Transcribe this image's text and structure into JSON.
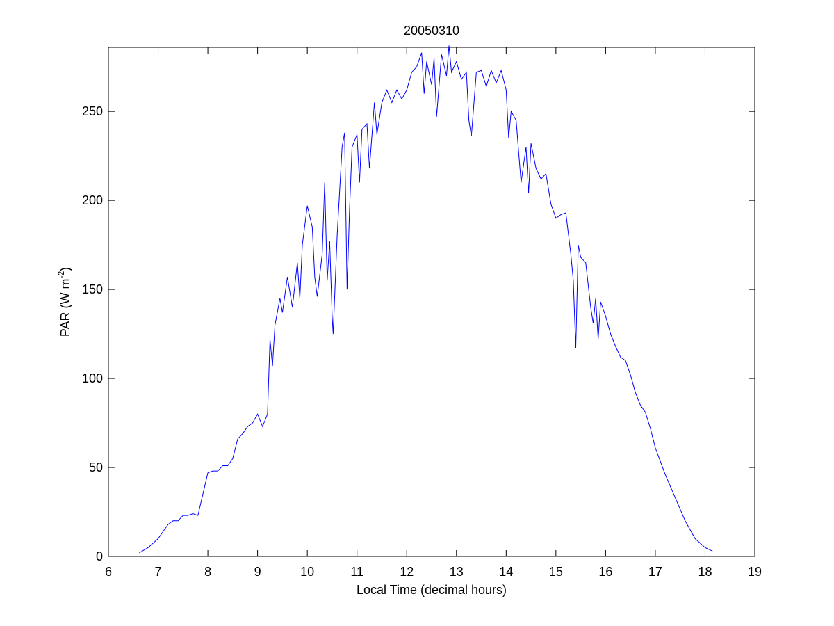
{
  "chart_data": {
    "type": "line",
    "title": "20050310",
    "x_label": "Local Time (decimal hours)",
    "y_label_parts": [
      "PAR (W m",
      "-2",
      ")"
    ],
    "color": "#0000ff",
    "x": [
      6.62,
      6.8,
      7.0,
      7.2,
      7.3,
      7.4,
      7.5,
      7.6,
      7.7,
      7.8,
      7.9,
      8.0,
      8.1,
      8.2,
      8.3,
      8.4,
      8.5,
      8.6,
      8.7,
      8.8,
      8.9,
      9.0,
      9.1,
      9.2,
      9.25,
      9.3,
      9.35,
      9.45,
      9.5,
      9.6,
      9.7,
      9.8,
      9.85,
      9.9,
      10.0,
      10.1,
      10.15,
      10.2,
      10.3,
      10.35,
      10.4,
      10.45,
      10.5,
      10.52,
      10.6,
      10.7,
      10.75,
      10.8,
      10.85,
      10.9,
      11.0,
      11.05,
      11.1,
      11.2,
      11.25,
      11.35,
      11.4,
      11.5,
      11.6,
      11.7,
      11.8,
      11.9,
      12.0,
      12.1,
      12.2,
      12.3,
      12.35,
      12.4,
      12.5,
      12.55,
      12.6,
      12.7,
      12.8,
      12.85,
      12.9,
      13.0,
      13.1,
      13.2,
      13.25,
      13.3,
      13.4,
      13.5,
      13.6,
      13.7,
      13.8,
      13.9,
      14.0,
      14.05,
      14.1,
      14.2,
      14.3,
      14.4,
      14.45,
      14.5,
      14.6,
      14.7,
      14.8,
      14.9,
      15.0,
      15.1,
      15.2,
      15.3,
      15.35,
      15.4,
      15.45,
      15.5,
      15.6,
      15.7,
      15.75,
      15.8,
      15.85,
      15.9,
      16.0,
      16.1,
      16.2,
      16.3,
      16.4,
      16.5,
      16.6,
      16.7,
      16.8,
      16.9,
      17.0,
      17.2,
      17.4,
      17.6,
      17.8,
      18.0,
      18.15
    ],
    "values": [
      2,
      5,
      10,
      18,
      20,
      20,
      23,
      23,
      24,
      23,
      35,
      47,
      48,
      48,
      51,
      51,
      55,
      66,
      69,
      73,
      75,
      80,
      73,
      80,
      122,
      107,
      130,
      145,
      137,
      157,
      140,
      165,
      145,
      175,
      197,
      185,
      157,
      146,
      170,
      210,
      155,
      177,
      135,
      125,
      180,
      230,
      238,
      150,
      195,
      230,
      237,
      210,
      240,
      243,
      218,
      255,
      237,
      255,
      262,
      255,
      262,
      257,
      262,
      272,
      275,
      283,
      260,
      278,
      265,
      280,
      247,
      282,
      270,
      287,
      272,
      278,
      268,
      272,
      245,
      236,
      272,
      273,
      264,
      273,
      266,
      273,
      262,
      235,
      250,
      245,
      210,
      230,
      204,
      232,
      218,
      212,
      215,
      198,
      190,
      192,
      193,
      170,
      155,
      117,
      175,
      168,
      165,
      140,
      131,
      145,
      122,
      143,
      135,
      125,
      118,
      112,
      110,
      102,
      92,
      85,
      81,
      72,
      61,
      46,
      33,
      20,
      10,
      5,
      3
    ],
    "xlim": [
      6,
      19
    ],
    "ylim": [
      0,
      286
    ],
    "xticks": [
      6,
      7,
      8,
      9,
      10,
      11,
      12,
      13,
      14,
      15,
      16,
      17,
      18,
      19
    ],
    "yticks": [
      0,
      50,
      100,
      150,
      200,
      250
    ]
  }
}
